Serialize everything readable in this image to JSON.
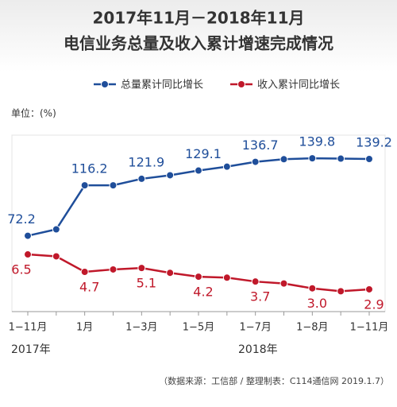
{
  "chart_data": {
    "type": "line",
    "title": "2017年11月－2018年11月",
    "subtitle": "电信业务总量及收入累计增速完成情况",
    "y_label": "单位：(%)",
    "categories": [
      "1−11月",
      null,
      "1月",
      null,
      "1−3月",
      null,
      "1−5月",
      null,
      "1−7月",
      null,
      "1−8月",
      null,
      "1−11月"
    ],
    "year_labels": [
      "2017年",
      "2018年"
    ],
    "source": "（数据来源：工信部 / 整理制表：C114通信网 2019.1.7）",
    "ylim": [
      6,
      160
    ],
    "y2lim": [
      0.6,
      18.8
    ],
    "series": [
      {
        "name": "总量累计同比增长",
        "color": "#1f4e9a",
        "values": [
          72.2,
          77.8,
          116.2,
          116.2,
          121.9,
          125.0,
          129.1,
          132.5,
          136.7,
          139.0,
          139.8,
          139.5,
          139.2
        ],
        "value_labels": [
          "72.2",
          null,
          "116.2",
          null,
          "121.9",
          null,
          "129.1",
          null,
          "136.7",
          null,
          "139.8",
          null,
          "139.2"
        ]
      },
      {
        "name": "收入累计同比增长",
        "color": "#c0182a",
        "axis": "y2",
        "values": [
          6.5,
          6.3,
          4.7,
          4.95,
          5.1,
          4.6,
          4.2,
          4.1,
          3.7,
          3.5,
          3.0,
          2.7,
          2.9
        ],
        "value_labels": [
          "6.5",
          null,
          "4.7",
          null,
          "5.1",
          null,
          "4.2",
          null,
          "3.7",
          null,
          "3.0",
          null,
          "2.9"
        ]
      }
    ]
  }
}
